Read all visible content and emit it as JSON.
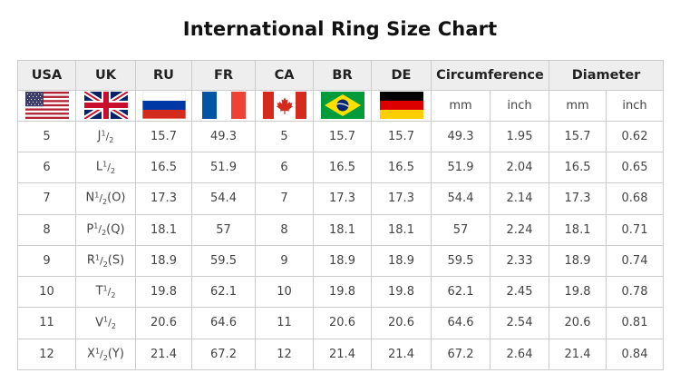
{
  "title": "International Ring Size Chart",
  "headers": {
    "usa": "USA",
    "uk": "UK",
    "ru": "RU",
    "fr": "FR",
    "ca": "CA",
    "br": "BR",
    "de": "DE",
    "circumference": "Circumference",
    "diameter": "Diameter"
  },
  "units": {
    "circ_mm": "mm",
    "circ_inch": "inch",
    "diam_mm": "mm",
    "diam_inch": "inch"
  },
  "flags": [
    "usa-flag-icon",
    "uk-flag-icon",
    "russia-flag-icon",
    "france-flag-icon",
    "canada-flag-icon",
    "brazil-flag-icon",
    "germany-flag-icon"
  ],
  "colors": {
    "header_bg": "#eeeeee",
    "border": "#cccccc"
  },
  "rows": [
    {
      "usa": "5",
      "uk_letter": "J",
      "uk_suffix": "",
      "ru": "15.7",
      "fr": "49.3",
      "ca": "5",
      "br": "15.7",
      "de": "15.7",
      "circ_mm": "49.3",
      "circ_inch": "1.95",
      "diam_mm": "15.7",
      "diam_inch": "0.62"
    },
    {
      "usa": "6",
      "uk_letter": "L",
      "uk_suffix": "",
      "ru": "16.5",
      "fr": "51.9",
      "ca": "6",
      "br": "16.5",
      "de": "16.5",
      "circ_mm": "51.9",
      "circ_inch": "2.04",
      "diam_mm": "16.5",
      "diam_inch": "0.65"
    },
    {
      "usa": "7",
      "uk_letter": "N",
      "uk_suffix": "(O)",
      "ru": "17.3",
      "fr": "54.4",
      "ca": "7",
      "br": "17.3",
      "de": "17.3",
      "circ_mm": "54.4",
      "circ_inch": "2.14",
      "diam_mm": "17.3",
      "diam_inch": "0.68"
    },
    {
      "usa": "8",
      "uk_letter": "P",
      "uk_suffix": "(Q)",
      "ru": "18.1",
      "fr": "57",
      "ca": "8",
      "br": "18.1",
      "de": "18.1",
      "circ_mm": "57",
      "circ_inch": "2.24",
      "diam_mm": "18.1",
      "diam_inch": "0.71"
    },
    {
      "usa": "9",
      "uk_letter": "R",
      "uk_suffix": "(S)",
      "ru": "18.9",
      "fr": "59.5",
      "ca": "9",
      "br": "18.9",
      "de": "18.9",
      "circ_mm": "59.5",
      "circ_inch": "2.33",
      "diam_mm": "18.9",
      "diam_inch": "0.74"
    },
    {
      "usa": "10",
      "uk_letter": "T",
      "uk_suffix": "",
      "ru": "19.8",
      "fr": "62.1",
      "ca": "10",
      "br": "19.8",
      "de": "19.8",
      "circ_mm": "62.1",
      "circ_inch": "2.45",
      "diam_mm": "19.8",
      "diam_inch": "0.78"
    },
    {
      "usa": "11",
      "uk_letter": "V",
      "uk_suffix": "",
      "ru": "20.6",
      "fr": "64.6",
      "ca": "11",
      "br": "20.6",
      "de": "20.6",
      "circ_mm": "64.6",
      "circ_inch": "2.54",
      "diam_mm": "20.6",
      "diam_inch": "0.81"
    },
    {
      "usa": "12",
      "uk_letter": "X",
      "uk_suffix": "(Y)",
      "ru": "21.4",
      "fr": "67.2",
      "ca": "12",
      "br": "21.4",
      "de": "21.4",
      "circ_mm": "67.2",
      "circ_inch": "2.64",
      "diam_mm": "21.4",
      "diam_inch": "0.84"
    }
  ]
}
